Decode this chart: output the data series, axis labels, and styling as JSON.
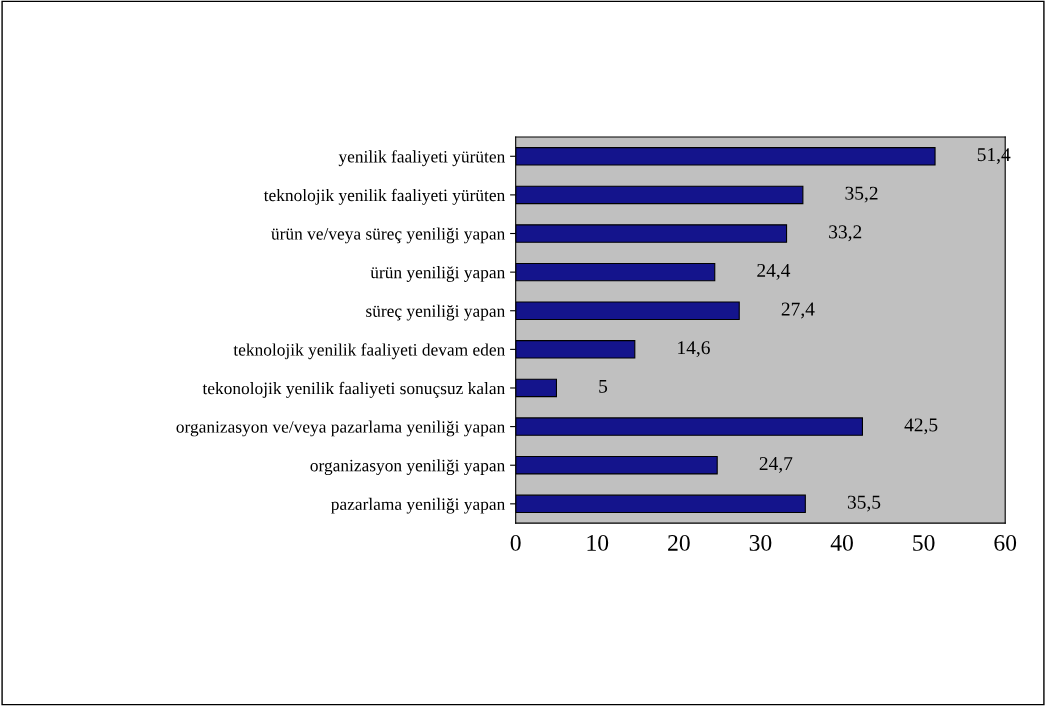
{
  "chart_data": {
    "type": "bar",
    "orientation": "horizontal",
    "categories": [
      "yenilik faaliyeti yürüten",
      "teknolojik yenilik faaliyeti yürüten",
      "ürün ve/veya süreç yeniliği yapan",
      "ürün yeniliği yapan",
      "süreç yeniliği yapan",
      "teknolojik yenilik faaliyeti devam eden",
      "tekonolojik yenilik faaliyeti sonuçsuz kalan",
      "organizasyon ve/veya pazarlama yeniliği yapan",
      "organizasyon yeniliği yapan",
      "pazarlama yeniliği yapan"
    ],
    "values": [
      51.4,
      35.2,
      33.2,
      24.4,
      27.4,
      14.6,
      5,
      42.5,
      24.7,
      35.5
    ],
    "value_labels": [
      "51,4",
      "35,2",
      "33,2",
      "24,4",
      "27,4",
      "14,6",
      "5",
      "42,5",
      "24,7",
      "35,5"
    ],
    "color": "#14148c",
    "xlim": [
      0,
      60
    ],
    "xticks": [
      0,
      10,
      20,
      30,
      40,
      50,
      60
    ],
    "grid": false,
    "legend": false
  }
}
